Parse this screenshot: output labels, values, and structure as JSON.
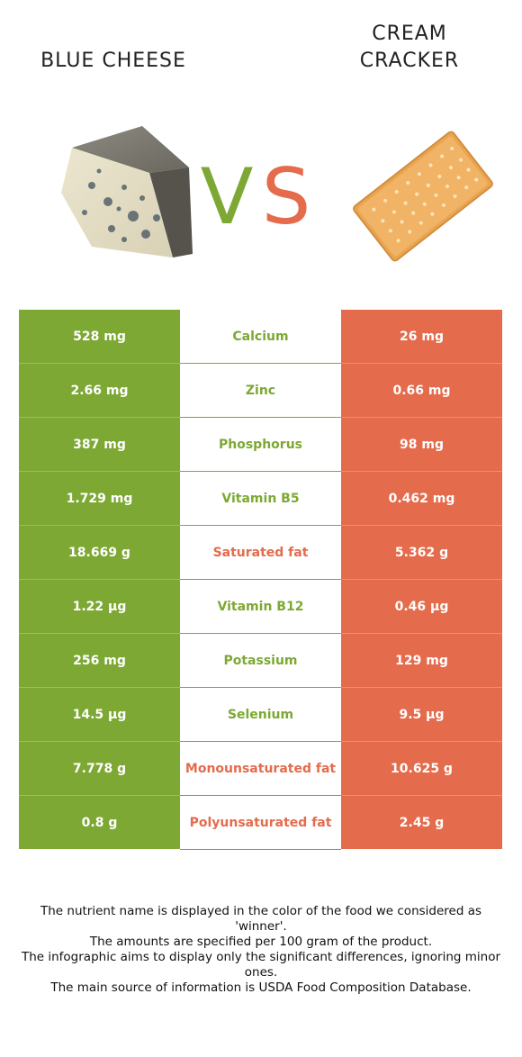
{
  "food_left": {
    "name": "BLUE CHEESE",
    "color": "#7da834"
  },
  "food_right": {
    "name_line1": "CREAM",
    "name_line2": "CRACKER",
    "color": "#e46b4c"
  },
  "vs_label": "VS",
  "nutrients": [
    {
      "name": "Calcium",
      "left": "528 mg",
      "right": "26 mg",
      "winner": "left"
    },
    {
      "name": "Zinc",
      "left": "2.66 mg",
      "right": "0.66 mg",
      "winner": "left"
    },
    {
      "name": "Phosphorus",
      "left": "387 mg",
      "right": "98 mg",
      "winner": "left"
    },
    {
      "name": "Vitamin B5",
      "left": "1.729 mg",
      "right": "0.462 mg",
      "winner": "left"
    },
    {
      "name": "Saturated fat",
      "left": "18.669 g",
      "right": "5.362 g",
      "winner": "right"
    },
    {
      "name": "Vitamin B12",
      "left": "1.22 µg",
      "right": "0.46 µg",
      "winner": "left"
    },
    {
      "name": "Potassium",
      "left": "256 mg",
      "right": "129 mg",
      "winner": "left"
    },
    {
      "name": "Selenium",
      "left": "14.5 µg",
      "right": "9.5 µg",
      "winner": "left"
    },
    {
      "name": "Monounsaturated fat",
      "left": "7.778 g",
      "right": "10.625 g",
      "winner": "right"
    },
    {
      "name": "Polyunsaturated fat",
      "left": "0.8 g",
      "right": "2.45 g",
      "winner": "right"
    }
  ],
  "footnote": {
    "line1": "The nutrient name is displayed in the color of the food we considered as 'winner'.",
    "line2": "The amounts are specified per 100 gram of the product.",
    "line3": "The infographic aims to display only the significant differences, ignoring minor ones.",
    "line4": "The main source of information is USDA Food Composition Database."
  }
}
